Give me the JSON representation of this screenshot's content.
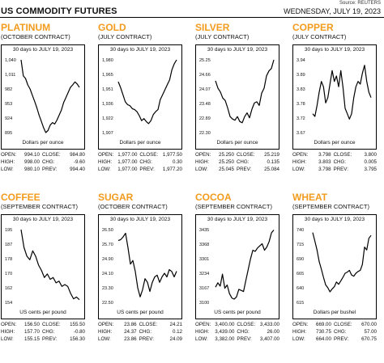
{
  "header": {
    "title": "US COMMODITY FUTURES",
    "date": "WEDNESDAY, JULY 19, 2023",
    "source": "Source: REUTERS"
  },
  "panels": [
    {
      "name": "PLATINUM",
      "contract": "(OCTOBER CONTRACT)",
      "range_label": "30 days to JULY 19, 2023",
      "unit": "Dollars per ounce",
      "stats": {
        "open": "994.10",
        "close": "984.80",
        "high": "998.00",
        "chg": "-9.60",
        "low": "980.10",
        "prev": "994.40"
      },
      "ticks": [
        "1,040",
        "1,011",
        "982",
        "953",
        "924",
        "895"
      ]
    },
    {
      "name": "GOLD",
      "contract": "(JULY CONTRACT)",
      "range_label": "30 days to JULY 19, 2023",
      "unit": "Dollars per ounce",
      "stats": {
        "open": "1,977.00",
        "close": "1,977.50",
        "high": "1,977.00",
        "chg": "0.30",
        "low": "1,977.00",
        "prev": "1,977.20"
      },
      "ticks": [
        "1,980",
        "1,965",
        "1,951",
        "1,936",
        "1,922",
        "1,907"
      ]
    },
    {
      "name": "SILVER",
      "contract": "(JULY CONTRACT)",
      "range_label": "30 days to JULY 19, 2023",
      "unit": "Dollars per ounce",
      "stats": {
        "open": "25.250",
        "close": "25.219",
        "high": "25.250",
        "chg": "0.135",
        "low": "25.045",
        "prev": "25.084"
      },
      "ticks": [
        "25.25",
        "24.66",
        "24.07",
        "23.48",
        "22.89",
        "22.30"
      ]
    },
    {
      "name": "COPPER",
      "contract": "(JULY CONTRACT)",
      "range_label": "30 days to JULY 19, 2023",
      "unit": "Dollars per ounce",
      "stats": {
        "open": "3.798",
        "close": "3.800",
        "high": "3.803",
        "chg": "0.005",
        "low": "3.798",
        "prev": "3.795"
      },
      "ticks": [
        "3.94",
        "3.89",
        "3.83",
        "3.78",
        "3.72",
        "3.67"
      ]
    },
    {
      "name": "COFFEE",
      "contract": "(SEPTEMBER CONTRACT)",
      "range_label": "30 days to JULY 19, 2023",
      "unit": "US cents per pound",
      "stats": {
        "open": "156.50",
        "close": "155.50",
        "high": "157.70",
        "chg": "-0.80",
        "low": "155.15",
        "prev": "156.30"
      },
      "ticks": [
        "195",
        "187",
        "178",
        "170",
        "162",
        "154"
      ]
    },
    {
      "name": "SUGAR",
      "contract": "(OCTOBER CONTRACT)",
      "range_label": "30 days to JULY 19, 2023",
      "unit": "US cents per pound",
      "stats": {
        "open": "23.86",
        "close": "24.21",
        "high": "24.37",
        "chg": "0.12",
        "low": "23.86",
        "prev": "24.09"
      },
      "ticks": [
        "26.50",
        "25.70",
        "24.90",
        "24.10",
        "23.30",
        "22.50"
      ]
    },
    {
      "name": "COCOA",
      "contract": "(SEPTEMBER CONTRACT)",
      "range_label": "30 days to JULY 19, 2023",
      "unit": "US cents per pound",
      "stats": {
        "open": "3,400.00",
        "close": "3,433.00",
        "high": "3,439.00",
        "chg": "26.00",
        "low": "3,382.00",
        "prev": "3,407.00"
      },
      "ticks": [
        "3435",
        "3368",
        "3301",
        "3234",
        "3167",
        "3100"
      ]
    },
    {
      "name": "WHEAT",
      "contract": "(SEPTEMBER CONTRACT)",
      "range_label": "30 days to JULY 19, 2023",
      "unit": "Dollars per bushel",
      "stats": {
        "open": "669.00",
        "close": "670.00",
        "high": "730.75",
        "chg": "57.00",
        "low": "664.00",
        "prev": "670.75"
      },
      "ticks": [
        "740",
        "715",
        "690",
        "665",
        "640",
        "615"
      ]
    }
  ],
  "chart_data": [
    {
      "type": "line",
      "title": "PLATINUM",
      "xlabel": "30 days to JULY 19, 2023",
      "ylabel": "Dollars per ounce",
      "ylim": [
        895,
        1040
      ],
      "series": [
        {
          "values": [
            1040,
            1008,
            1003,
            990,
            982,
            970,
            958,
            945,
            930,
            918,
            905,
            895,
            899,
            910,
            915,
            912,
            920,
            930,
            940,
            955,
            965,
            975,
            985,
            990,
            996,
            992,
            985
          ]
        }
      ]
    },
    {
      "type": "line",
      "title": "GOLD",
      "xlabel": "30 days to JULY 19, 2023",
      "ylabel": "Dollars per ounce",
      "ylim": [
        1907,
        1980
      ],
      "series": [
        {
          "values": [
            1958,
            1952,
            1945,
            1938,
            1935,
            1934,
            1931,
            1930,
            1928,
            1924,
            1919,
            1921,
            1918,
            1916,
            1919,
            1925,
            1928,
            1930,
            1940,
            1945,
            1950,
            1955,
            1960,
            1970,
            1976,
            1980
          ]
        }
      ]
    },
    {
      "type": "line",
      "title": "SILVER",
      "xlabel": "30 days to JULY 19, 2023",
      "ylabel": "Dollars per ounce",
      "ylim": [
        22.3,
        25.25
      ],
      "series": [
        {
          "values": [
            24.4,
            24.1,
            23.95,
            23.7,
            23.6,
            23.3,
            22.95,
            22.85,
            22.8,
            22.95,
            22.75,
            22.7,
            22.95,
            23.1,
            22.9,
            23.25,
            23.5,
            23.55,
            23.4,
            23.9,
            24.1,
            24.6,
            24.8,
            24.9,
            25.25
          ]
        }
      ]
    },
    {
      "type": "line",
      "title": "COPPER",
      "xlabel": "30 days to JULY 19, 2023",
      "ylabel": "Dollars per ounce",
      "ylim": [
        3.67,
        3.94
      ],
      "series": [
        {
          "values": [
            3.74,
            3.73,
            3.77,
            3.82,
            3.86,
            3.84,
            3.78,
            3.8,
            3.85,
            3.9,
            3.86,
            3.88,
            3.84,
            3.9,
            3.84,
            3.76,
            3.74,
            3.72,
            3.74,
            3.8,
            3.84,
            3.86,
            3.85,
            3.89,
            3.92,
            3.86,
            3.82,
            3.8
          ]
        }
      ]
    },
    {
      "type": "line",
      "title": "COFFEE",
      "xlabel": "30 days to JULY 19, 2023",
      "ylabel": "US cents per pound",
      "ylim": [
        154,
        195
      ],
      "series": [
        {
          "values": [
            195,
            185,
            180,
            178,
            183,
            180,
            175,
            172,
            168,
            170,
            167,
            168,
            165,
            166,
            163,
            164,
            163,
            159,
            156,
            157,
            155.5
          ]
        }
      ]
    },
    {
      "type": "line",
      "title": "SUGAR",
      "xlabel": "30 days to JULY 19, 2023",
      "ylabel": "US cents per pound",
      "ylim": [
        22.5,
        26.5
      ],
      "series": [
        {
          "values": [
            25.9,
            25.95,
            26.1,
            26.3,
            25.5,
            24.6,
            24.8,
            24.2,
            23.3,
            22.8,
            23.2,
            23.8,
            23.6,
            23.1,
            23.6,
            23.9,
            24.0,
            23.6,
            23.9,
            24.1,
            23.9,
            24.3,
            24.2,
            23.9,
            24.21
          ]
        }
      ]
    },
    {
      "type": "line",
      "title": "COCOA",
      "xlabel": "30 days to JULY 19, 2023",
      "ylabel": "US cents per pound",
      "ylim": [
        3100,
        3435
      ],
      "series": [
        {
          "values": [
            3170,
            3190,
            3175,
            3230,
            3165,
            3180,
            3140,
            3120,
            3115,
            3125,
            3160,
            3155,
            3150,
            3200,
            3250,
            3300,
            3340,
            3335,
            3350,
            3360,
            3370,
            3340,
            3355,
            3380,
            3420,
            3433
          ]
        }
      ]
    },
    {
      "type": "line",
      "title": "WHEAT",
      "xlabel": "30 days to JULY 19, 2023",
      "ylabel": "Dollars per bushel",
      "ylim": [
        615,
        740
      ],
      "series": [
        {
          "values": [
            735,
            720,
            705,
            685,
            672,
            658,
            645,
            640,
            633,
            638,
            642,
            650,
            646,
            652,
            658,
            665,
            667,
            670,
            662,
            660,
            665,
            668,
            670,
            680,
            710,
            705,
            725,
            730
          ]
        }
      ]
    }
  ]
}
